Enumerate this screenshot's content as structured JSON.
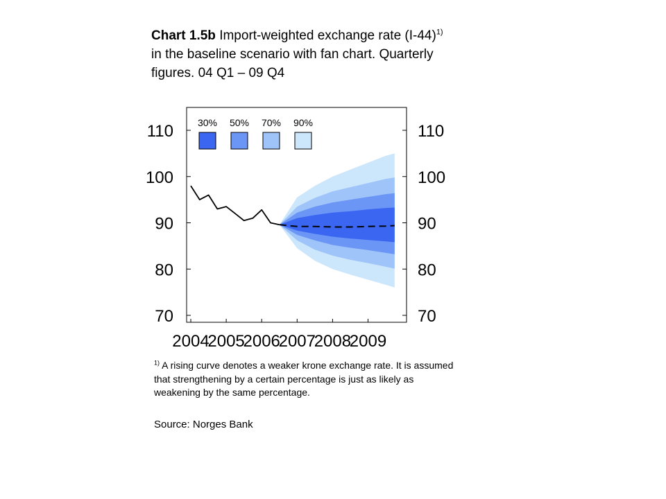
{
  "title": {
    "number": "Chart 1.5b",
    "text": "Import-weighted exchange rate (I-44)",
    "superscript": "1)",
    "line2": "in the baseline scenario with fan chart. Quarterly",
    "line3": "figures. 04 Q1 – 09 Q4"
  },
  "footnote": {
    "marker": "1)",
    "text": "A rising curve denotes a weaker krone exchange rate. It is assumed that strengthening by a certain percentage is just as likely as weakening by the same percentage."
  },
  "source": "Source: Norges Bank",
  "chart_data": {
    "type": "line",
    "x_tick_labels": [
      "2004",
      "2005",
      "2006",
      "2007",
      "2008",
      "2009"
    ],
    "y_tick_labels": [
      "110",
      "100",
      "90",
      "80",
      "70"
    ],
    "ylim": [
      70,
      110
    ],
    "y_axes": "left and right",
    "legend_placement": "top-left",
    "legend": [
      {
        "label": "30%",
        "color": "#3a66f2"
      },
      {
        "label": "50%",
        "color": "#6b96f6"
      },
      {
        "label": "70%",
        "color": "#9fc4f9"
      },
      {
        "label": "90%",
        "color": "#cce6fc"
      }
    ],
    "history": {
      "x": [
        "2004 Q1",
        "2004 Q2",
        "2004 Q3",
        "2004 Q4",
        "2005 Q1",
        "2005 Q2",
        "2005 Q3",
        "2005 Q4",
        "2006 Q1",
        "2006 Q2",
        "2006 Q3"
      ],
      "values": [
        98.0,
        95.0,
        96.0,
        93.0,
        93.5,
        92.0,
        90.5,
        91.0,
        92.8,
        90.0,
        89.6
      ],
      "color": "#000000",
      "style": "solid"
    },
    "baseline": {
      "x": [
        "2006 Q3",
        "2007 Q1",
        "2007 Q3",
        "2008 Q1",
        "2008 Q3",
        "2009 Q1",
        "2009 Q3",
        "2009 Q4"
      ],
      "values": [
        89.6,
        89.2,
        89.2,
        89.1,
        89.1,
        89.2,
        89.3,
        89.4
      ],
      "color": "#000000",
      "style": "dashed"
    },
    "fan": {
      "x": [
        "2006 Q3",
        "2007 Q1",
        "2007 Q3",
        "2008 Q1",
        "2008 Q3",
        "2009 Q1",
        "2009 Q3",
        "2009 Q4"
      ],
      "bands": [
        {
          "label": "90%",
          "upper": [
            89.6,
            95.5,
            98.0,
            100.0,
            101.5,
            103.0,
            104.5,
            105.0
          ],
          "lower": [
            89.6,
            84.5,
            81.8,
            80.0,
            78.8,
            77.7,
            76.6,
            76.0
          ]
        },
        {
          "label": "70%",
          "upper": [
            89.6,
            93.5,
            95.4,
            96.8,
            97.7,
            98.6,
            99.5,
            99.8
          ],
          "lower": [
            89.6,
            86.2,
            84.2,
            82.9,
            82.0,
            81.3,
            80.5,
            80.1
          ]
        },
        {
          "label": "50%",
          "upper": [
            89.6,
            92.2,
            93.5,
            94.4,
            95.0,
            95.6,
            96.2,
            96.4
          ],
          "lower": [
            89.6,
            87.4,
            86.2,
            85.2,
            84.6,
            84.1,
            83.5,
            83.2
          ]
        },
        {
          "label": "30%",
          "upper": [
            89.6,
            91.0,
            91.7,
            92.2,
            92.5,
            92.9,
            93.2,
            93.3
          ],
          "lower": [
            89.6,
            88.3,
            87.6,
            87.0,
            86.6,
            86.3,
            86.0,
            85.8
          ]
        }
      ]
    }
  }
}
